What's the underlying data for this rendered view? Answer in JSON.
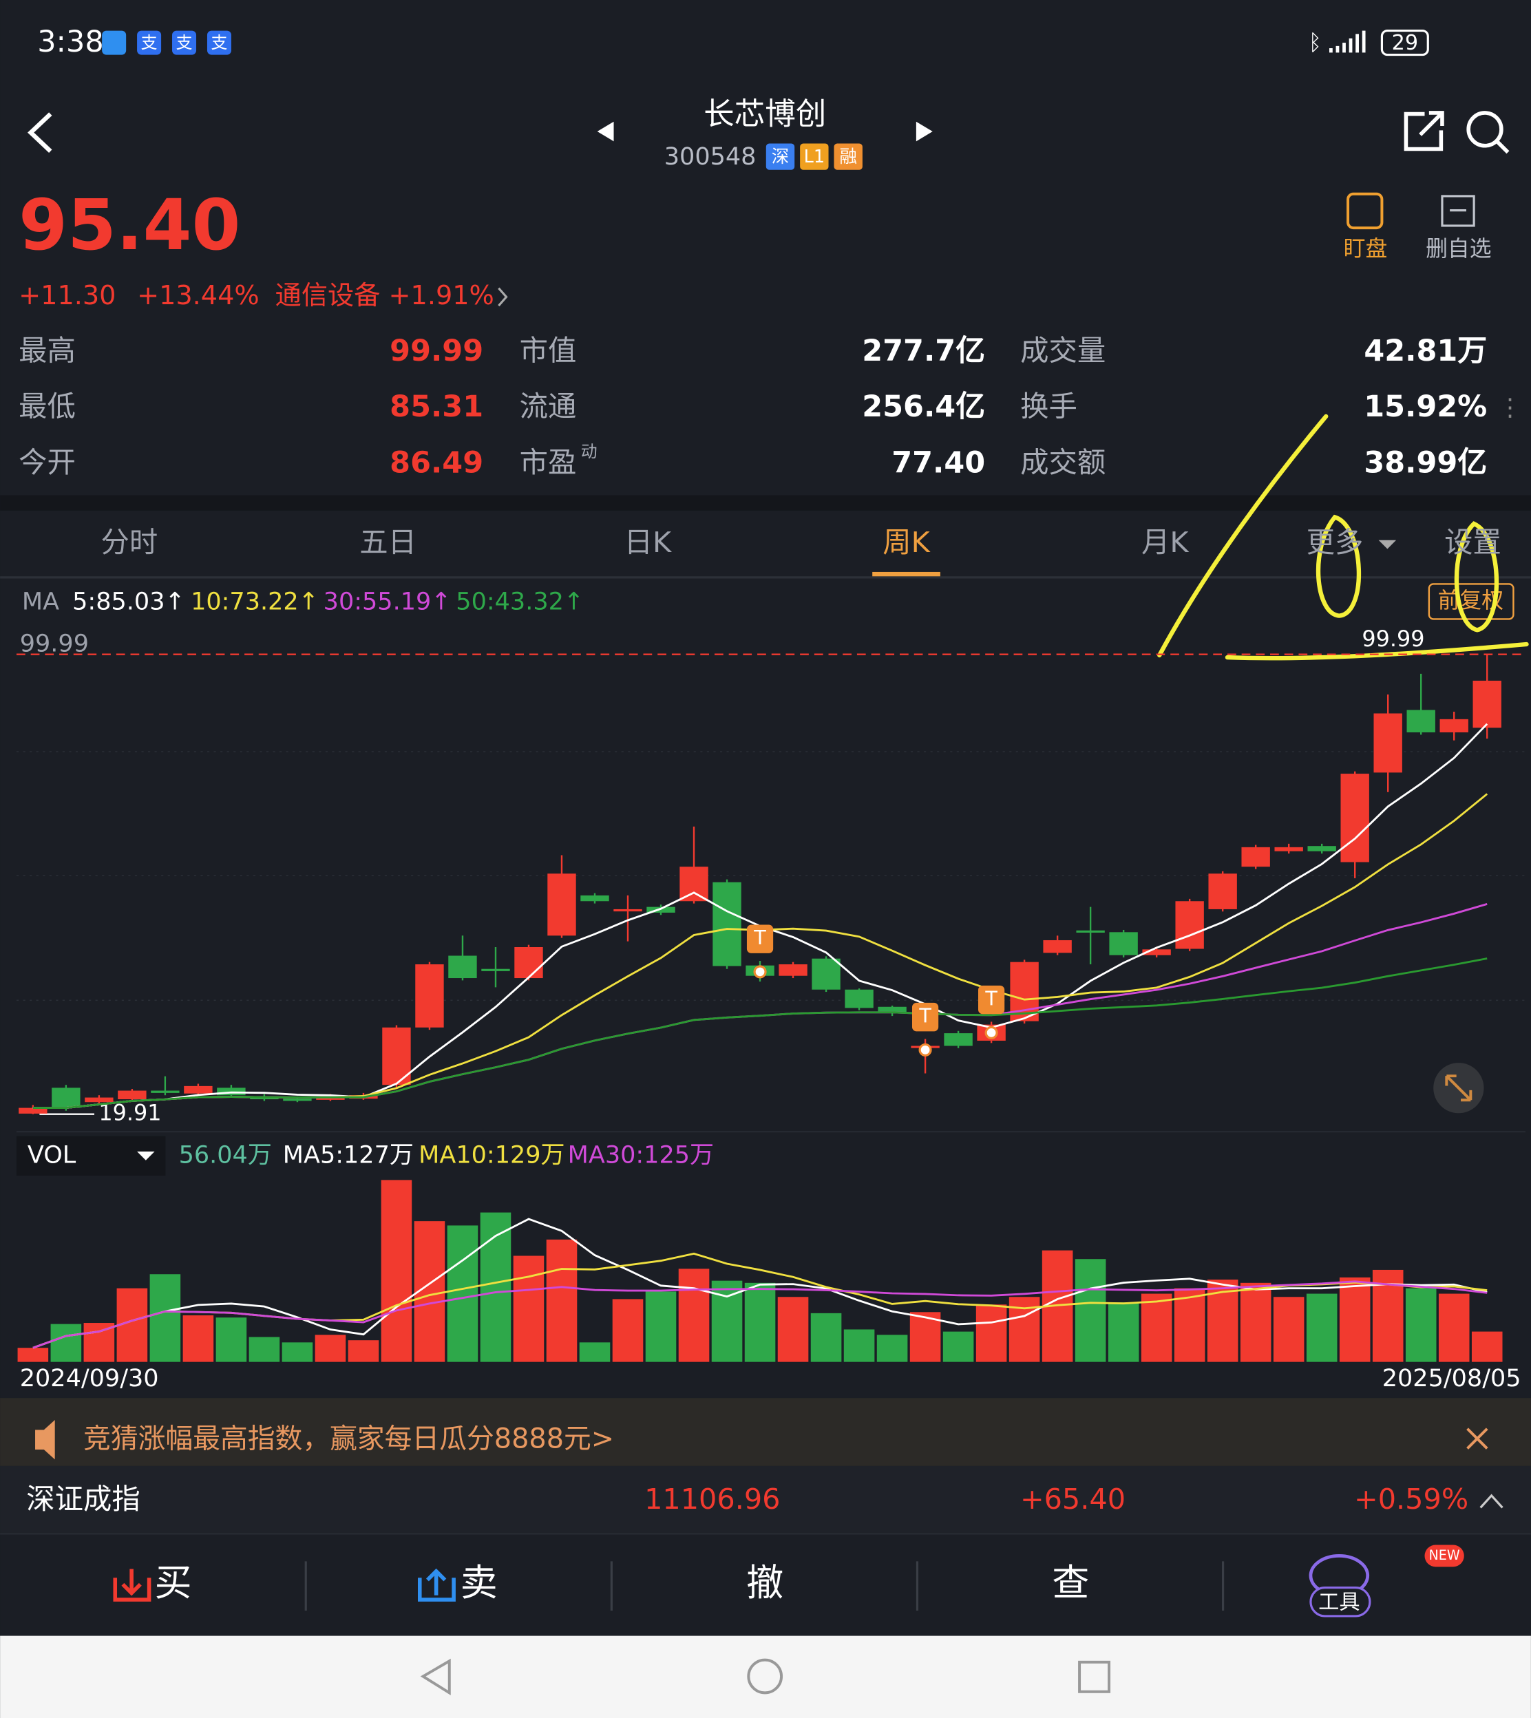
{
  "status_bar": {
    "time": "3:38",
    "icons": [
      "支",
      "支",
      "支"
    ],
    "battery": "29"
  },
  "header": {
    "name": "长芯博创",
    "code": "300548",
    "badges": [
      "深",
      "L1",
      "融"
    ]
  },
  "quote": {
    "price": "95.40",
    "change": "+11.30",
    "change_pct": "+13.44%",
    "sector": "通信设备 +1.91%"
  },
  "actions": [
    "盯盘",
    "删自选"
  ],
  "stats": [
    [
      "最高",
      "99.99",
      "市值",
      "277.7亿",
      "成交量",
      "42.81万"
    ],
    [
      "最低",
      "85.31",
      "流通",
      "256.4亿",
      "换手",
      "15.92%"
    ],
    [
      "今开",
      "86.49",
      "市盈",
      "77.40",
      "成交额",
      "38.99亿"
    ]
  ],
  "pe_sup": "动",
  "tabs": [
    "分时",
    "五日",
    "日K",
    "周K",
    "月K",
    "更多",
    "设置"
  ],
  "ma_legend": [
    "MA",
    "5:85.03↑",
    "10:73.22↑",
    "30:55.19↑",
    "50:43.32↑"
  ],
  "adjust": "前复权",
  "chart_data": {
    "type": "candlestick",
    "high_label": "99.99",
    "low_label": "19.91",
    "ylim": [
      17.4,
      104.8
    ],
    "open": [
      20.0,
      24.5,
      22.0,
      22.5,
      24.0,
      23.5,
      24.5,
      23.0,
      22.6,
      22.4,
      22.6,
      25.0,
      35.0,
      47.5,
      45.2,
      43.6,
      51.0,
      58.0,
      55.3,
      56.0,
      57.0,
      60.3,
      45.8,
      44.0,
      47.0,
      41.6,
      38.6,
      31.6,
      34.0,
      32.7,
      36.1,
      48.0,
      51.9,
      51.6,
      47.6,
      48.7,
      55.6,
      63.0,
      65.7,
      66.6,
      63.8,
      79.4,
      90.3,
      86.4,
      87.2
    ],
    "close": [
      21.0,
      21.0,
      22.8,
      24.0,
      23.6,
      24.8,
      23.2,
      22.5,
      22.4,
      23.0,
      23.2,
      35.0,
      46.0,
      43.6,
      45.0,
      49.0,
      61.8,
      57.0,
      55.6,
      55.0,
      63.0,
      45.7,
      44.0,
      46.0,
      41.6,
      38.4,
      37.5,
      31.8,
      31.8,
      35.5,
      46.4,
      50.2,
      51.7,
      47.6,
      48.6,
      57.0,
      61.8,
      66.4,
      66.4,
      65.7,
      79.2,
      89.7,
      86.4,
      88.7,
      95.4
    ],
    "high": [
      21.5,
      25.0,
      23.2,
      24.3,
      26.5,
      25.2,
      25.0,
      23.4,
      23.0,
      23.4,
      23.6,
      35.4,
      46.4,
      51.0,
      49.0,
      49.4,
      65.0,
      58.4,
      58.0,
      56.4,
      70.0,
      60.8,
      46.6,
      46.4,
      47.4,
      41.8,
      38.8,
      33.0,
      34.4,
      36.0,
      46.8,
      51.0,
      56.0,
      52.0,
      49.0,
      57.4,
      62.2,
      66.8,
      67.0,
      67.0,
      79.6,
      93.0,
      96.6,
      90.0,
      99.99
    ],
    "low": [
      19.91,
      20.5,
      21.6,
      22.2,
      23.2,
      23.2,
      22.8,
      22.2,
      22.0,
      22.2,
      22.4,
      24.6,
      34.6,
      43.2,
      42.0,
      43.2,
      50.6,
      56.6,
      50.0,
      54.6,
      56.6,
      45.2,
      43.0,
      43.6,
      41.2,
      38.0,
      37.0,
      27.0,
      31.4,
      32.3,
      35.7,
      47.6,
      46.0,
      47.2,
      47.2,
      48.3,
      55.2,
      62.6,
      65.3,
      65.3,
      61.0,
      76.0,
      86.0,
      85.0,
      85.31
    ],
    "markers": [
      {
        "index": 22,
        "label": "T"
      },
      {
        "index": 27,
        "label": "T"
      },
      {
        "index": 29,
        "label": "T"
      }
    ],
    "volume": {
      "ylim": [
        0,
        340
      ],
      "values": [
        26,
        70,
        72,
        136,
        162,
        86,
        82,
        46,
        36,
        50,
        40,
        336,
        260,
        252,
        276,
        196,
        226,
        36,
        116,
        130,
        172,
        150,
        146,
        120,
        90,
        60,
        50,
        92,
        56,
        106,
        120,
        206,
        190,
        110,
        126,
        136,
        152,
        146,
        120,
        126,
        156,
        170,
        136,
        126,
        56.04
      ],
      "legend": [
        "VOL",
        "56.04万",
        "MA5:127万",
        "MA10:129万",
        "MA30:125万"
      ]
    },
    "dates": [
      "2024/09/30",
      "2025/08/05"
    ]
  },
  "banner": "竞猜涨幅最高指数，赢家每日瓜分8888元>",
  "index_bar": [
    "深证成指",
    "11106.96",
    "+65.40",
    "+0.59%"
  ],
  "bottom_nav": [
    "买",
    "卖",
    "撤",
    "查",
    "工具"
  ],
  "new_badge": "NEW"
}
